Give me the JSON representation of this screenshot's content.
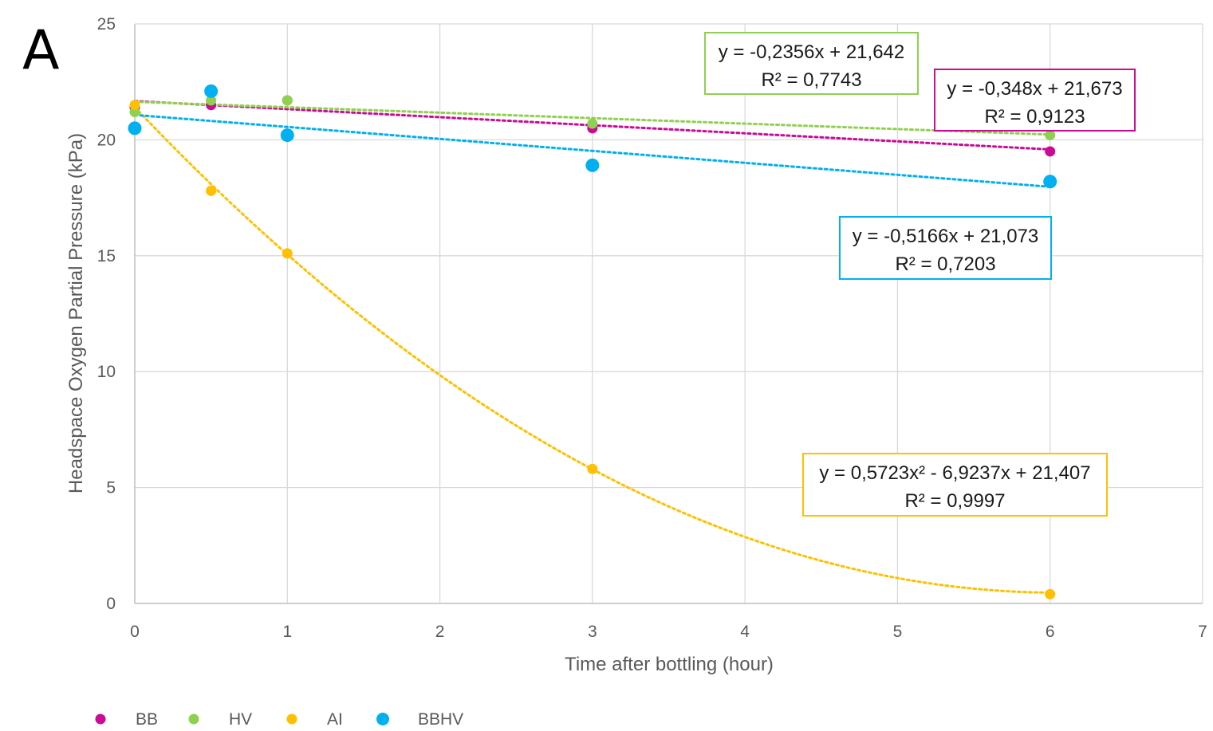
{
  "panel_label": "A",
  "chart_data": {
    "type": "scatter",
    "title": "",
    "xlabel": "Time after bottling (hour)",
    "ylabel": "Headspace Oxygen Partial Pressure (kPa)",
    "xlim": [
      0,
      7
    ],
    "ylim": [
      0,
      25
    ],
    "xticks": [
      "0",
      "1",
      "2",
      "3",
      "4",
      "5",
      "6",
      "7"
    ],
    "yticks": [
      "0",
      "5",
      "10",
      "15",
      "20",
      "25"
    ],
    "grid": true,
    "legend_position": "bottom-left",
    "series": [
      {
        "name": "BB",
        "color": "#cc0a96",
        "marker_size": "small",
        "points": [
          [
            0,
            21.4
          ],
          [
            0.5,
            21.5
          ],
          [
            1,
            21.7
          ],
          [
            3,
            20.5
          ],
          [
            6,
            19.5
          ]
        ],
        "trendline": {
          "kind": "linear",
          "coef": [
            21.673,
            -0.348
          ],
          "dash": true
        },
        "equation": "y = -0,348x + 21,673",
        "r2": "R² = 0,9123"
      },
      {
        "name": "HV",
        "color": "#8fd14f",
        "marker_size": "small",
        "points": [
          [
            0,
            21.2
          ],
          [
            0.5,
            21.7
          ],
          [
            1,
            21.7
          ],
          [
            3,
            20.7
          ],
          [
            6,
            20.2
          ]
        ],
        "trendline": {
          "kind": "linear",
          "coef": [
            21.642,
            -0.2356
          ],
          "dash": true
        },
        "equation": "y = -0,2356x + 21,642",
        "r2": "R² = 0,7743"
      },
      {
        "name": "AI",
        "color": "#ffc000",
        "marker_size": "small",
        "points": [
          [
            0,
            21.5
          ],
          [
            0.5,
            17.8
          ],
          [
            1,
            15.1
          ],
          [
            3,
            5.8
          ],
          [
            6,
            0.4
          ]
        ],
        "trendline": {
          "kind": "poly2",
          "coef": [
            21.407,
            -6.9237,
            0.5723
          ],
          "dash": true
        },
        "equation": "y = 0,5723x² - 6,9237x + 21,407",
        "r2": "R² = 0,9997"
      },
      {
        "name": "BBHV",
        "color": "#00b0f0",
        "marker_size": "large",
        "points": [
          [
            0,
            20.5
          ],
          [
            0.5,
            22.1
          ],
          [
            1,
            20.2
          ],
          [
            3,
            18.9
          ],
          [
            6,
            18.2
          ]
        ],
        "trendline": {
          "kind": "linear",
          "coef": [
            21.073,
            -0.5166
          ],
          "dash": true
        },
        "equation": "y = -0,5166x + 21,073",
        "r2": "R² = 0,7203"
      }
    ]
  }
}
